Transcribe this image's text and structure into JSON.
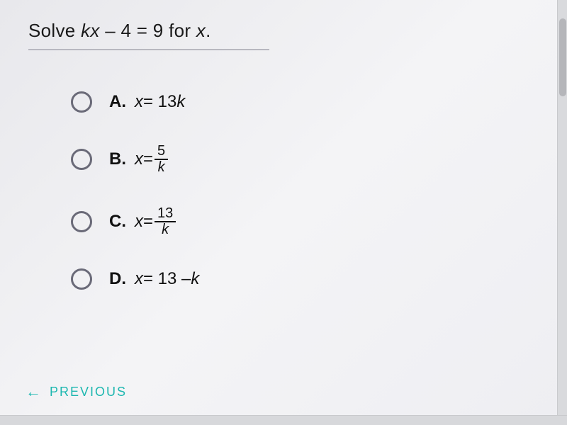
{
  "question": {
    "prefix": "Solve ",
    "equation_lhs_k": "k",
    "equation_lhs_x": "x",
    "equation_mid": " – 4 = 9 for ",
    "equation_var": "x",
    "suffix": "."
  },
  "options": [
    {
      "letter": "A.",
      "expr_html": "plain",
      "lhs": "x",
      "eq": " = 13",
      "tail_ital": "k"
    },
    {
      "letter": "B.",
      "expr_html": "frac",
      "lhs": "x",
      "eq": " = ",
      "num": "5",
      "den": "k"
    },
    {
      "letter": "C.",
      "expr_html": "frac",
      "lhs": "x",
      "eq": " = ",
      "num": "13",
      "den": "k"
    },
    {
      "letter": "D.",
      "expr_html": "plain",
      "lhs": "x",
      "eq": " = 13 – ",
      "tail_ital": "k"
    }
  ],
  "footer": {
    "previous": "PREVIOUS"
  },
  "colors": {
    "accent": "#1db7b0",
    "text": "#111111",
    "radio_border": "#6a6a78",
    "divider": "#b8b8c0",
    "background": "#f0f0f4"
  }
}
